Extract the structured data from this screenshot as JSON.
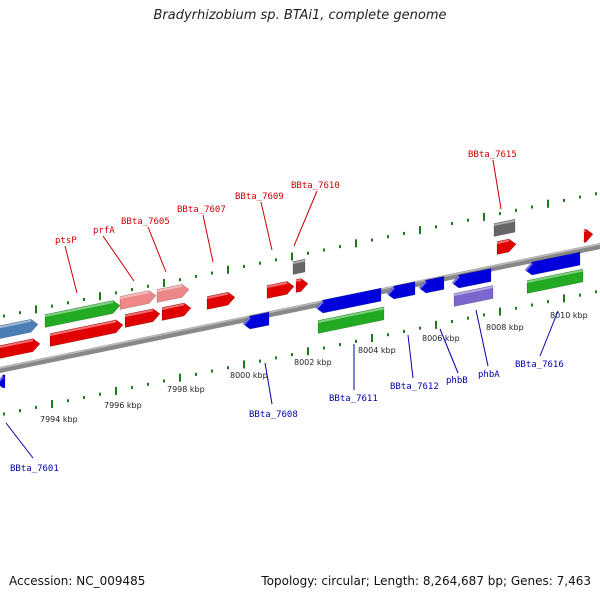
{
  "title": "Bradyrhizobium sp. BTAi1, complete genome",
  "footer": {
    "accession": "Accession: NC_009485",
    "stats": "Topology: circular; Length: 8,264,687 bp; Genes: 7,463"
  },
  "colors": {
    "forward_label": "#cc0000",
    "reverse_label": "#0000aa",
    "tick": "#1a7a1a",
    "backbone": "#888888"
  },
  "scale_labels": [
    "7994 kbp",
    "7996 kbp",
    "7998 kbp",
    "8000 kbp",
    "8002 kbp",
    "8004 kbp",
    "8006 kbp",
    "8008 kbp",
    "8010 kbp"
  ],
  "forward_gene_labels": [
    "ptsP",
    "prfA",
    "BBta_7605",
    "BBta_7607",
    "BBta_7609",
    "BBta_7610",
    "BBta_7615"
  ],
  "reverse_gene_labels": [
    "BBta_7601",
    "BBta_7608",
    "BBta_7611",
    "BBta_7612",
    "phbB",
    "phbA",
    "BBta_7616"
  ]
}
